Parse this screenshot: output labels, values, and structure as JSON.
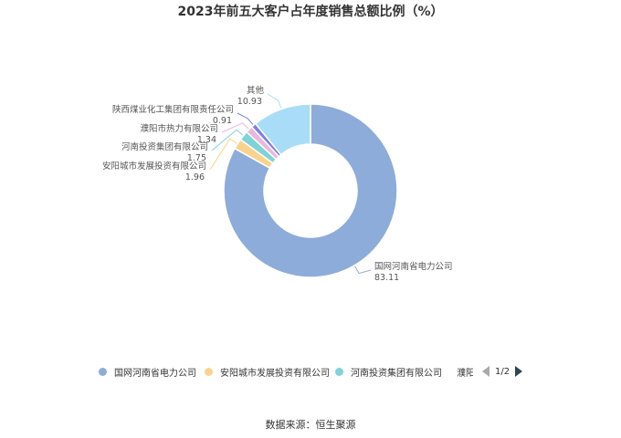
{
  "chart_data": {
    "type": "pie",
    "title": "2023年前五大客户占年度销售总额比例（%）",
    "slices": [
      {
        "name": "国网河南省电力公司",
        "value": 83.11,
        "value_label": "83.11",
        "color": "#8eacd9"
      },
      {
        "name": "安阳城市发展投资有限公司",
        "value": 1.96,
        "value_label": "1.96",
        "color": "#f9d38e"
      },
      {
        "name": "河南投资集团有限公司",
        "value": 1.75,
        "value_label": "1.75",
        "color": "#7fd3d6"
      },
      {
        "name": "濮阳市热力有限公司",
        "value": 1.34,
        "value_label": "1.34",
        "color": "#e8b8e0"
      },
      {
        "name": "陕西煤业化工集团有限责任公司",
        "value": 0.91,
        "value_label": "0.91",
        "color": "#7f7fe3"
      },
      {
        "name": "其他",
        "value": 10.93,
        "value_label": "10.93",
        "color": "#a9ddf7"
      }
    ]
  },
  "legend": {
    "items": [
      {
        "label": "国网河南省电力公司",
        "color": "#8eacd9"
      },
      {
        "label": "安阳城市发展投资有限公司",
        "color": "#f9d38e"
      },
      {
        "label": "河南投资集团有限公司",
        "color": "#7fd3d6"
      },
      {
        "label": "濮阳市热力有限公司",
        "color": "#e8b8e0"
      }
    ],
    "page": "1/2"
  },
  "source": "数据来源：恒生聚源"
}
